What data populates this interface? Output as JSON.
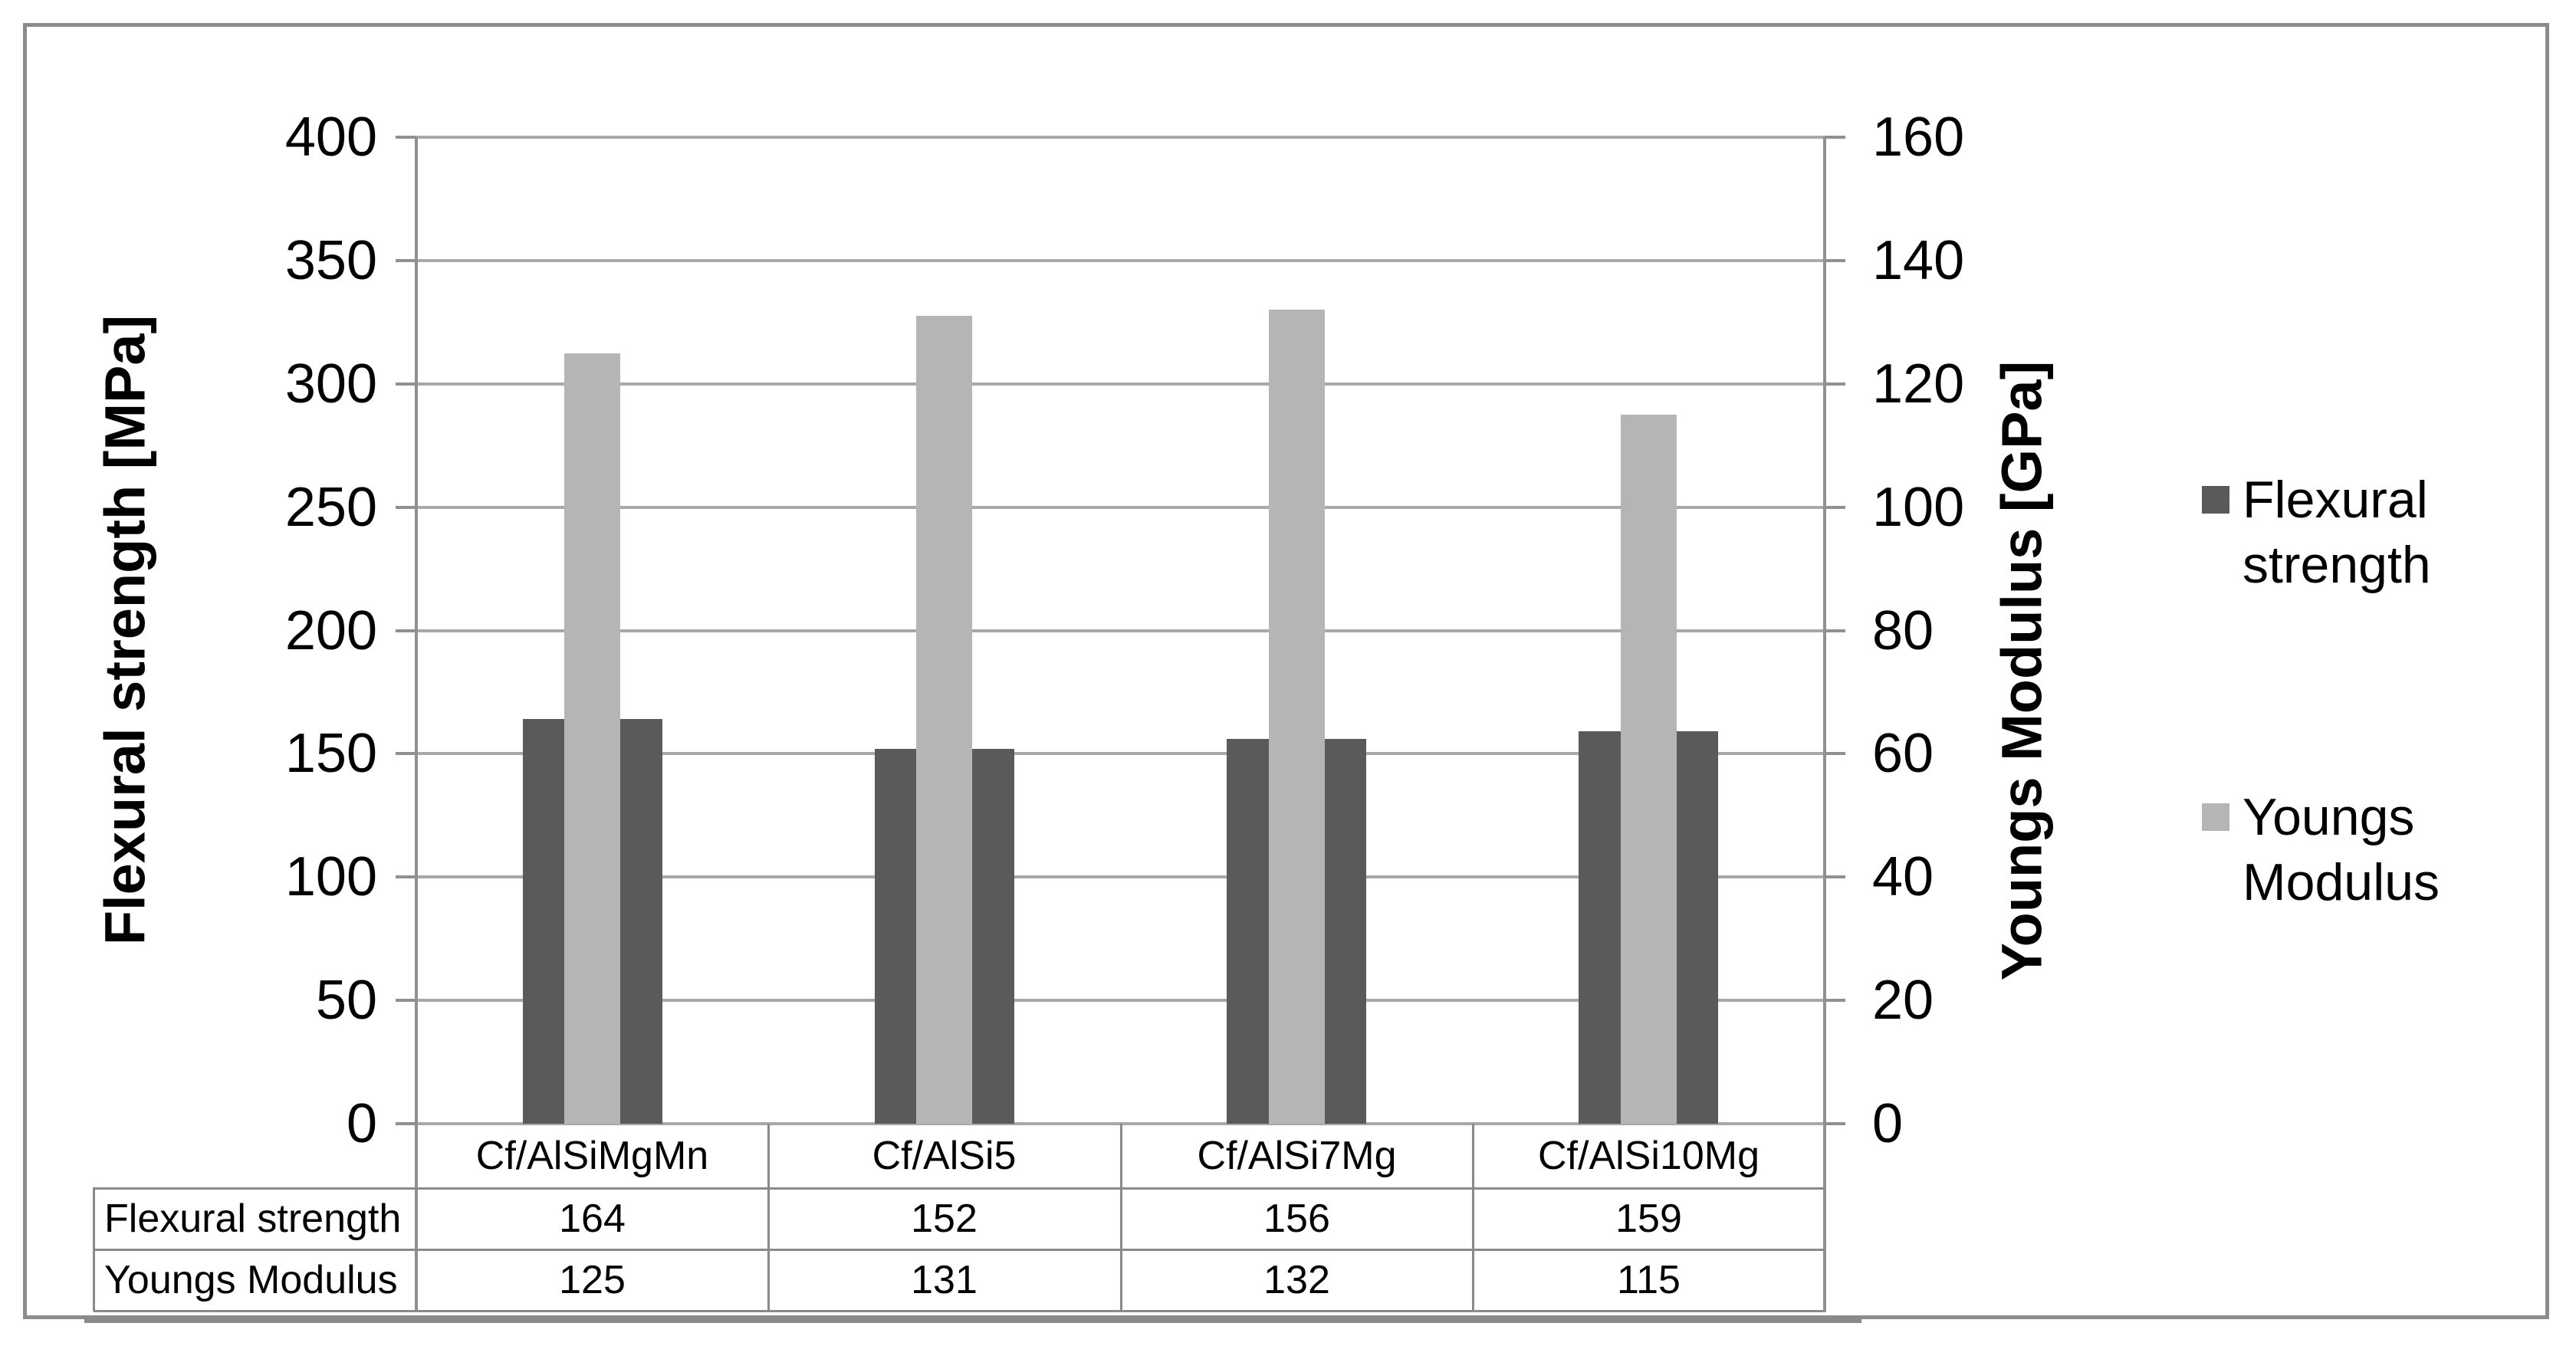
{
  "chart_data": {
    "type": "bar",
    "categories": [
      "Cf/AlSiMgMn",
      "Cf/AlSi5",
      "Cf/AlSi7Mg",
      "Cf/AlSi10Mg"
    ],
    "series": [
      {
        "name": "Flexural strength",
        "axis": "left",
        "values": [
          164,
          152,
          156,
          159
        ],
        "color": "#5a5a5a"
      },
      {
        "name": "Youngs Modulus",
        "axis": "right",
        "values": [
          125,
          131,
          132,
          115
        ],
        "color": "#b5b5b5"
      }
    ],
    "left_axis": {
      "title": "Flexural strength [MPa]",
      "min": 0,
      "max": 400,
      "step": 50,
      "ticks": [
        0,
        50,
        100,
        150,
        200,
        250,
        300,
        350,
        400
      ]
    },
    "right_axis": {
      "title": "Youngs Modulus [GPa]",
      "min": 0,
      "max": 160,
      "step": 20,
      "ticks": [
        0,
        20,
        40,
        60,
        80,
        100,
        120,
        140,
        160
      ]
    },
    "grid": true,
    "legend": {
      "position": "right",
      "items": [
        {
          "label_lines": "Flexural\nstrength",
          "color": "#5a5a5a"
        },
        {
          "label_lines": "Youngs\nModulus",
          "color": "#b5b5b5"
        }
      ]
    },
    "data_table": {
      "rows": [
        {
          "label": "Flexural strength",
          "values": [
            "164",
            "152",
            "156",
            "159"
          ]
        },
        {
          "label": "Youngs Modulus",
          "values": [
            "125",
            "131",
            "132",
            "115"
          ]
        }
      ]
    },
    "colors": {
      "bar_dark": "#5a5a5a",
      "bar_light": "#b5b5b5",
      "gridline": "#a8a8a8",
      "axis_line": "#909090",
      "table_border": "#8a8a8a",
      "frame_border": "#8c8c8c"
    }
  }
}
